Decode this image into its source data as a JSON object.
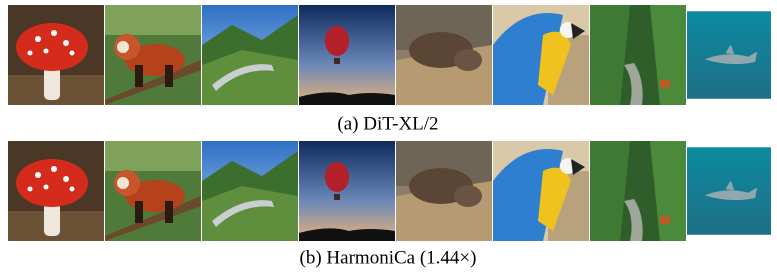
{
  "figure": {
    "rows": [
      {
        "caption": "(a) DiT-XL/2"
      },
      {
        "caption": "(b) HarmoniCa (1.44×)"
      }
    ]
  }
}
